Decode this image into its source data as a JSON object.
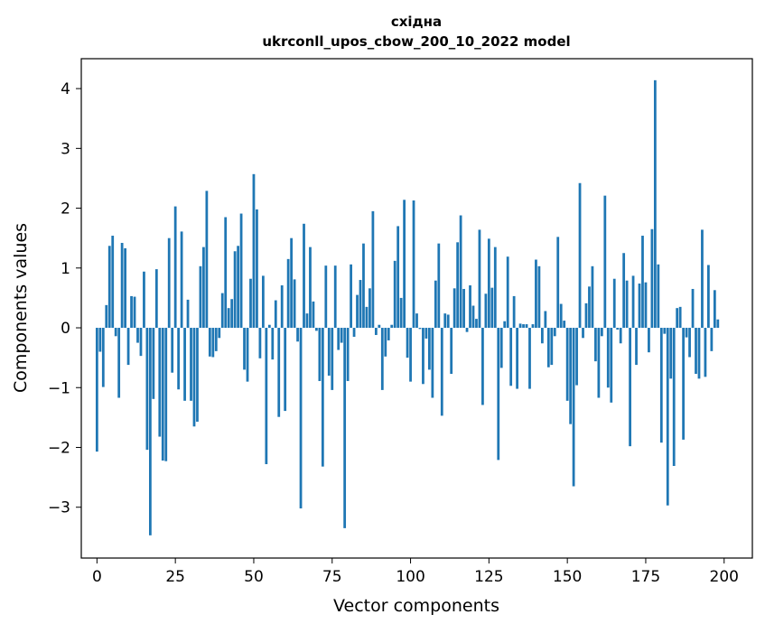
{
  "chart_data": {
    "type": "bar",
    "title_line1": "східна",
    "title_line2": "ukrconll_upos_cbow_200_10_2022 model",
    "xlabel": "Vector components",
    "ylabel": "Components values",
    "xlim": [
      -5,
      209
    ],
    "ylim": [
      -3.85,
      4.5
    ],
    "xticks": [
      0,
      25,
      50,
      75,
      100,
      125,
      150,
      175,
      200
    ],
    "yticks": [
      4,
      3,
      2,
      1,
      0,
      -1,
      -2,
      -3
    ],
    "ytick_labels": [
      "4",
      "3",
      "2",
      "1",
      "0",
      "−1",
      "−2",
      "−3"
    ],
    "grid": false,
    "bar_color": "#1f77b4",
    "values": [
      -2.07,
      -0.4,
      -0.99,
      0.38,
      1.37,
      1.54,
      -0.14,
      -1.17,
      1.42,
      1.33,
      -0.62,
      0.53,
      0.52,
      -0.25,
      -0.47,
      0.94,
      -2.04,
      -3.47,
      -1.19,
      0.98,
      -1.82,
      -2.22,
      -2.23,
      1.5,
      -0.75,
      2.03,
      -1.03,
      1.61,
      -1.22,
      0.47,
      -1.22,
      -1.65,
      -1.57,
      1.03,
      1.35,
      2.29,
      -0.48,
      -0.49,
      -0.39,
      -0.17,
      0.58,
      1.85,
      0.33,
      0.48,
      1.28,
      1.37,
      1.91,
      -0.7,
      -0.9,
      0.82,
      2.57,
      1.98,
      -0.51,
      0.87,
      -2.28,
      0.05,
      -0.53,
      0.46,
      -1.49,
      0.71,
      -1.39,
      1.15,
      1.5,
      0.81,
      -0.23,
      -3.02,
      1.74,
      0.24,
      1.35,
      0.44,
      -0.05,
      -0.89,
      -2.32,
      1.04,
      -0.8,
      -1.04,
      1.04,
      -0.37,
      -0.25,
      -3.35,
      -0.89,
      1.06,
      -0.15,
      0.55,
      0.8,
      1.41,
      0.35,
      0.66,
      1.95,
      -0.12,
      0.05,
      -1.04,
      -0.48,
      -0.21,
      0.05,
      1.12,
      1.7,
      0.5,
      2.14,
      -0.5,
      -0.9,
      2.13,
      0.24,
      -0.02,
      -0.94,
      -0.18,
      -0.7,
      -1.17,
      0.79,
      1.41,
      -1.47,
      0.24,
      0.22,
      -0.77,
      0.66,
      1.43,
      1.88,
      0.65,
      -0.07,
      0.71,
      0.37,
      0.15,
      1.64,
      -1.29,
      0.57,
      1.49,
      0.67,
      1.35,
      -2.21,
      -0.67,
      0.11,
      1.19,
      -0.97,
      0.53,
      -1.02,
      0.07,
      0.06,
      0.06,
      -1.02,
      0.06,
      1.14,
      1.03,
      -0.26,
      0.28,
      -0.66,
      -0.62,
      -0.14,
      1.52,
      0.4,
      0.12,
      -1.22,
      -1.61,
      -2.65,
      -0.96,
      2.42,
      -0.17,
      0.41,
      0.69,
      1.03,
      -0.56,
      -1.17,
      -0.14,
      2.21,
      -1.0,
      -1.25,
      0.82,
      -0.03,
      -0.26,
      1.25,
      0.79,
      -1.98,
      0.87,
      -0.62,
      0.74,
      1.54,
      0.76,
      -0.41,
      1.65,
      4.14,
      1.06,
      -1.92,
      -0.1,
      -2.97,
      -0.85,
      -2.31,
      0.33,
      0.35,
      -1.87,
      -0.16,
      -0.49,
      0.65,
      -0.77,
      -0.85,
      1.64,
      -0.82,
      1.05,
      -0.39,
      0.63,
      0.14
    ]
  }
}
